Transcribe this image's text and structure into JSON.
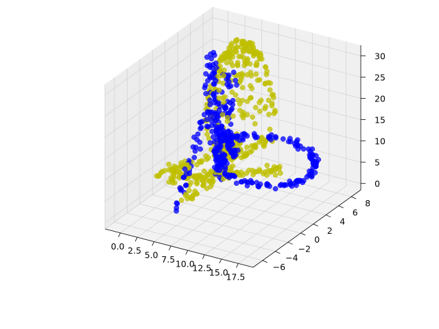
{
  "chart_data": {
    "type": "scatter",
    "projection": "3d",
    "title": "",
    "xlabel": "",
    "ylabel": "",
    "zlabel": "",
    "grid": true,
    "pane_color": "#f0f0f0",
    "xlim": [
      -2.3,
      19.7
    ],
    "ylim": [
      -7.5,
      9.5
    ],
    "zlim": [
      -1.5,
      32.5
    ],
    "x_ticks": [
      0.0,
      2.5,
      5.0,
      7.5,
      10.0,
      12.5,
      15.0,
      17.5
    ],
    "x_tick_labels": [
      "0.0",
      "2.5",
      "5.0",
      "7.5",
      "10.0",
      "12.5",
      "15.0",
      "17.5"
    ],
    "y_ticks": [
      -6,
      -4,
      -2,
      0,
      2,
      4,
      6,
      8
    ],
    "y_tick_labels": [
      "−6",
      "−4",
      "−2",
      "0",
      "2",
      "4",
      "6",
      "8"
    ],
    "z_ticks": [
      0,
      5,
      10,
      15,
      20,
      25,
      30
    ],
    "z_tick_labels": [
      "0",
      "5",
      "10",
      "15",
      "20",
      "25",
      "30"
    ],
    "series": [
      {
        "color": "#0000ff",
        "description": "Blue points forming a tall fin, a cross shape and an elongated loop",
        "clusters": [
          {
            "kind": "line",
            "from": [
              2.0,
              4.5,
              30
            ],
            "to": [
              5.5,
              2.0,
              10
            ],
            "spread": [
              0.6,
              0.8,
              1.5
            ],
            "n": 70
          },
          {
            "kind": "line",
            "from": [
              4.0,
              6.0,
              24
            ],
            "to": [
              6.5,
              1.0,
              5
            ],
            "spread": [
              0.6,
              0.8,
              1.5
            ],
            "n": 60
          },
          {
            "kind": "line",
            "from": [
              3.0,
              3.0,
              18
            ],
            "to": [
              4.0,
              -3.0,
              0
            ],
            "spread": [
              0.4,
              0.6,
              1.2
            ],
            "n": 40
          },
          {
            "kind": "loop",
            "center": [
              13.5,
              1.0,
              12
            ],
            "radii": [
              7.0,
              2.5,
              2.5
            ],
            "n": 160
          },
          {
            "kind": "line",
            "from": [
              6.0,
              3.0,
              13
            ],
            "to": [
              10.0,
              0.0,
              13
            ],
            "spread": [
              0.5,
              0.8,
              1.0
            ],
            "n": 40
          },
          {
            "kind": "line",
            "from": [
              6.0,
              1.5,
              16
            ],
            "to": [
              8.5,
              0.0,
              8
            ],
            "spread": [
              0.4,
              0.5,
              1.0
            ],
            "n": 30
          }
        ]
      },
      {
        "color": "#bfbf00",
        "description": "Yellow points forming a bell-shaped dome over a flat cross-shaped base",
        "clusters": [
          {
            "kind": "dome",
            "center": [
              4.5,
              6.5,
              6
            ],
            "radius": 4.0,
            "height": 24,
            "n": 220
          },
          {
            "kind": "line",
            "from": [
              0.5,
              0.0,
              3
            ],
            "to": [
              14.0,
              3.0,
              8
            ],
            "spread": [
              0.6,
              0.8,
              1.0
            ],
            "n": 90
          },
          {
            "kind": "line",
            "from": [
              5.0,
              -3.0,
              3
            ],
            "to": [
              9.0,
              6.0,
              10
            ],
            "spread": [
              0.6,
              0.8,
              1.0
            ],
            "n": 60
          },
          {
            "kind": "line",
            "from": [
              0.0,
              -2.0,
              6
            ],
            "to": [
              6.0,
              1.0,
              10
            ],
            "spread": [
              0.5,
              0.6,
              1.0
            ],
            "n": 40
          },
          {
            "kind": "blob",
            "center": [
              6.5,
              2.5,
              10
            ],
            "spread": [
              1.5,
              1.5,
              2.0
            ],
            "n": 70
          }
        ]
      }
    ]
  }
}
